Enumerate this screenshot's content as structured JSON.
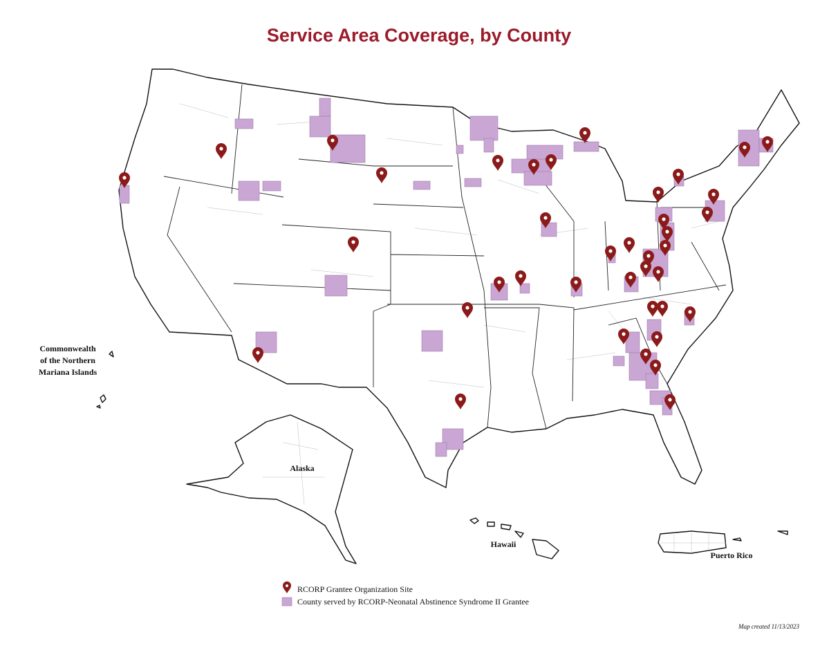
{
  "title": "Service Area Coverage, by County",
  "regions": {
    "cnmi": [
      "Commonwealth",
      "of the Northern",
      "Mariana Islands"
    ],
    "alaska": "Alaska",
    "hawaii": "Hawaii",
    "puerto_rico": "Puerto Rico"
  },
  "legend": {
    "site": "RCORP Grantee Organization Site",
    "county": "County served by RCORP-Neonatal Abstinence Syndrome II Grantee"
  },
  "footer": "Map created 11/13/2023"
}
